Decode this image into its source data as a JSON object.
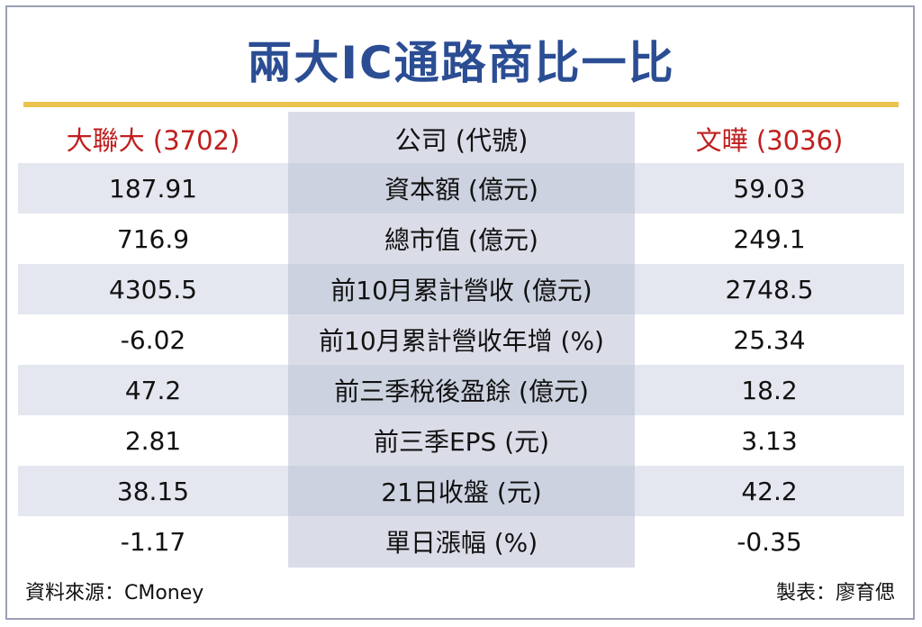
{
  "title": "兩大IC通路商比一比",
  "header": {
    "left": "大聯大 (3702)",
    "center": "公司 (代號)",
    "right": "文曄 (3036)"
  },
  "rows": [
    {
      "left": "187.91",
      "label": "資本額 (億元)",
      "right": "59.03"
    },
    {
      "left": "716.9",
      "label": "總市值 (億元)",
      "right": "249.1"
    },
    {
      "left": "4305.5",
      "label": "前10月累計營收 (億元)",
      "right": "2748.5"
    },
    {
      "left": "-6.02",
      "label": "前10月累計營收年增 (%)",
      "right": "25.34"
    },
    {
      "left": "47.2",
      "label": "前三季稅後盈餘 (億元)",
      "right": "18.2"
    },
    {
      "left": "2.81",
      "label": "前三季EPS (元)",
      "right": "3.13"
    },
    {
      "left": "38.15",
      "label": "21日收盤 (元)",
      "right": "42.2"
    },
    {
      "left": "-1.17",
      "label": "單日漲幅 (%)",
      "right": "-0.35"
    }
  ],
  "footer": {
    "source": "資料來源：CMoney",
    "credit": "製表：廖育偲"
  },
  "colors": {
    "title": "#2b4d93",
    "header_red": "#c01f1f",
    "accent_rule": "#e8c44e",
    "stripe": "#e4e7f0",
    "center_column": "#dadde8"
  }
}
